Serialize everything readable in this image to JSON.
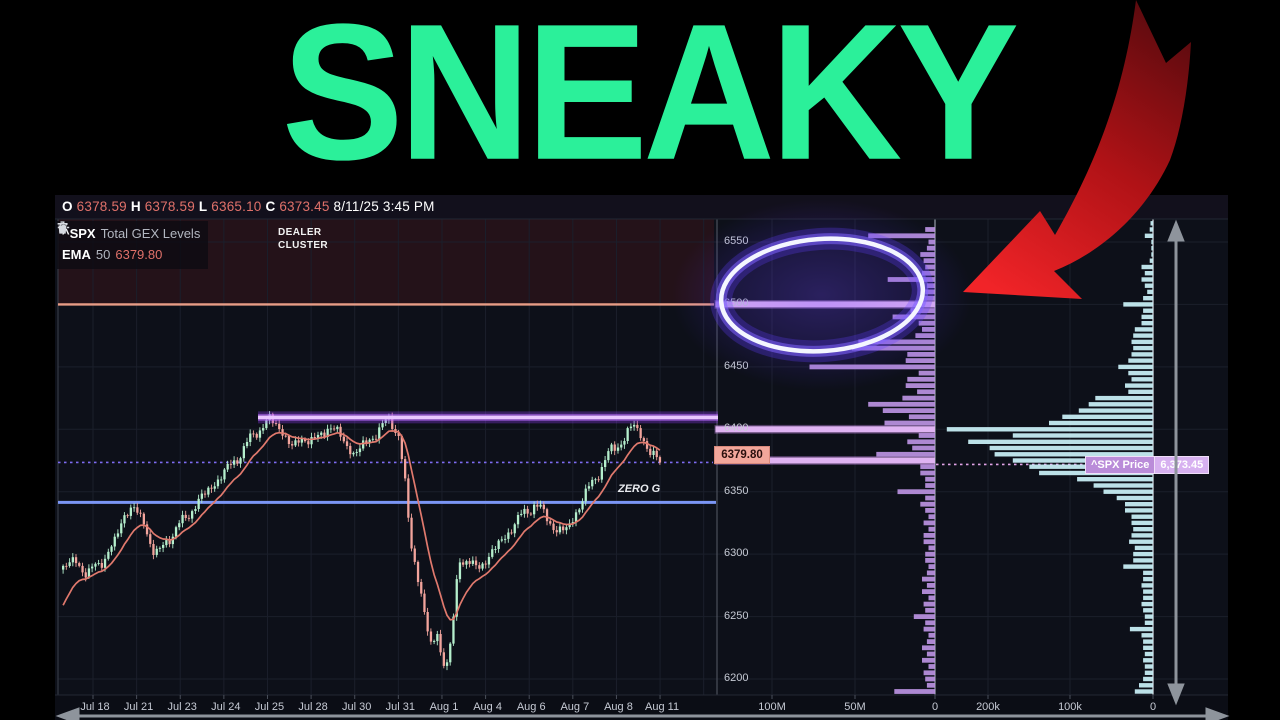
{
  "title": {
    "text": "SNEAKY",
    "color": "#2BF09A"
  },
  "ohlc": {
    "o_label": "O",
    "o_value": "6378.59",
    "h_label": "H",
    "h_value": "6378.59",
    "l_label": "L",
    "l_value": "6365.10",
    "c_label": "C",
    "c_value": "6373.45",
    "datetime": "8/11/25 3:45 PM"
  },
  "legend": {
    "symbol": "^SPX",
    "description": "Total GEX Levels",
    "ema_label": "EMA",
    "ema_period": "50",
    "ema_value": "6379.80",
    "icons": [
      "gear-icon",
      "trash-icon"
    ]
  },
  "annotations": {
    "dealer_line1": "DEALER",
    "dealer_line2": "CLUSTER",
    "zero_gamma_label": "ZERO G",
    "ema_axis_tag": "6379.80",
    "price_tag_label": "^SPX Price",
    "price_tag_value": "6,373.45",
    "highlight": "blue-glow-ellipse around 6500 dealer cluster",
    "red_arrow": "curved arrow pointing at highlighted cluster"
  },
  "colors": {
    "title_green": "#2BF09A",
    "arrow_red": "#e02327",
    "candle_up": "#b5efcd",
    "candle_down": "#f2a49c",
    "ema_line": "#e0796d",
    "gex_bar": "#bb92e2",
    "gex_major_bar": "#dfb3f2",
    "profile_bar": "#c6edf3",
    "level_orange": "#e89c86",
    "level_purple": "#d98cff",
    "level_blue": "#7b96f5",
    "price_dotted": "#7e6cf2",
    "dealer_band": "#241219",
    "chart_bg": "#0d1019"
  },
  "chart_data": {
    "type": "candlestick+bar",
    "price_axis": {
      "ticks": [
        "6550",
        "6500",
        "6450",
        "6400",
        "6350",
        "6300",
        "6250",
        "6200"
      ],
      "min": 6185,
      "max": 6575
    },
    "date_axis": [
      "Jul 18",
      "Jul 21",
      "Jul 23",
      "Jul 24",
      "Jul 25",
      "Jul 28",
      "Jul 30",
      "Jul 31",
      "Aug 1",
      "Aug 4",
      "Aug 6",
      "Aug 7",
      "Aug 8",
      "Aug 11"
    ],
    "candles": {
      "type": "candlestick",
      "count": 186,
      "last_close": 6373.45,
      "close_anchors": [
        [
          0.0,
          6288
        ],
        [
          0.02,
          6296
        ],
        [
          0.04,
          6283
        ],
        [
          0.07,
          6298
        ],
        [
          0.085,
          6306
        ],
        [
          0.1,
          6332
        ],
        [
          0.12,
          6336
        ],
        [
          0.135,
          6326
        ],
        [
          0.15,
          6303
        ],
        [
          0.16,
          6300
        ],
        [
          0.175,
          6312
        ],
        [
          0.2,
          6326
        ],
        [
          0.23,
          6344
        ],
        [
          0.26,
          6360
        ],
        [
          0.29,
          6376
        ],
        [
          0.32,
          6396
        ],
        [
          0.345,
          6408
        ],
        [
          0.365,
          6400
        ],
        [
          0.385,
          6385
        ],
        [
          0.405,
          6394
        ],
        [
          0.425,
          6390
        ],
        [
          0.445,
          6404
        ],
        [
          0.465,
          6394
        ],
        [
          0.487,
          6380
        ],
        [
          0.51,
          6390
        ],
        [
          0.53,
          6400
        ],
        [
          0.548,
          6408
        ],
        [
          0.562,
          6396
        ],
        [
          0.572,
          6360
        ],
        [
          0.582,
          6310
        ],
        [
          0.592,
          6288
        ],
        [
          0.6,
          6268
        ],
        [
          0.608,
          6245
        ],
        [
          0.618,
          6222
        ],
        [
          0.626,
          6240
        ],
        [
          0.634,
          6218
        ],
        [
          0.643,
          6212
        ],
        [
          0.65,
          6228
        ],
        [
          0.657,
          6262
        ],
        [
          0.663,
          6298
        ],
        [
          0.675,
          6295
        ],
        [
          0.69,
          6288
        ],
        [
          0.71,
          6296
        ],
        [
          0.73,
          6308
        ],
        [
          0.75,
          6320
        ],
        [
          0.77,
          6332
        ],
        [
          0.79,
          6340
        ],
        [
          0.81,
          6330
        ],
        [
          0.828,
          6318
        ],
        [
          0.845,
          6320
        ],
        [
          0.862,
          6336
        ],
        [
          0.88,
          6352
        ],
        [
          0.9,
          6368
        ],
        [
          0.92,
          6384
        ],
        [
          0.94,
          6392
        ],
        [
          0.955,
          6404
        ],
        [
          0.968,
          6396
        ],
        [
          0.982,
          6382
        ],
        [
          1.0,
          6373.45
        ]
      ]
    },
    "ema": {
      "period": "50",
      "value": 6379.8
    },
    "levels": {
      "dealer_cluster_top_band": {
        "from": 6500,
        "to": 6568,
        "color_key": "dealer_band"
      },
      "call_resistance_orange": 6500,
      "purple_resistance": 6409.5,
      "zero_gamma_blue": 6341.5,
      "current_price_dotted": 6373.45
    },
    "gex_histogram": {
      "type": "bar",
      "orientation": "horizontal",
      "unit": "M",
      "axis_ticks": [
        "100M",
        "50M",
        "0"
      ],
      "start_price": 6190,
      "step": 5,
      "major_levels": [
        6375,
        6400,
        6500
      ],
      "major_value": 130,
      "values": [
        25,
        5,
        6,
        7,
        4,
        8,
        5,
        8,
        5,
        4,
        7,
        6,
        13,
        6,
        7,
        4,
        8,
        5,
        8,
        5,
        4,
        6,
        6,
        4,
        7,
        7,
        4,
        7,
        4,
        6,
        9,
        6,
        23,
        6,
        6,
        9,
        9,
        130,
        36,
        14,
        17,
        10,
        130,
        31,
        16,
        32,
        41,
        20,
        11,
        18,
        17,
        10,
        77,
        18,
        17,
        51,
        47,
        12,
        8,
        10,
        26,
        15,
        130,
        8,
        6,
        5,
        29,
        8,
        6,
        7,
        9,
        5,
        4,
        41,
        6
      ]
    },
    "volume_profile": {
      "type": "bar",
      "orientation": "horizontal",
      "unit": "k",
      "axis_ticks": [
        "200k",
        "100k",
        "0"
      ],
      "start_price": 6190,
      "step": 5,
      "values": [
        22,
        17,
        12,
        10,
        10,
        12,
        10,
        12,
        12,
        14,
        28,
        10,
        10,
        12,
        14,
        12,
        12,
        14,
        12,
        12,
        36,
        24,
        24,
        22,
        29,
        26,
        24,
        26,
        26,
        34,
        34,
        44,
        60,
        72,
        92,
        138,
        150,
        170,
        192,
        198,
        224,
        170,
        250,
        126,
        110,
        90,
        78,
        70,
        30,
        34,
        26,
        30,
        42,
        30,
        26,
        24,
        26,
        24,
        22,
        14,
        14,
        12,
        36,
        12,
        7,
        10,
        14,
        10,
        14,
        4,
        2,
        2,
        2,
        10,
        4,
        3
      ]
    }
  }
}
